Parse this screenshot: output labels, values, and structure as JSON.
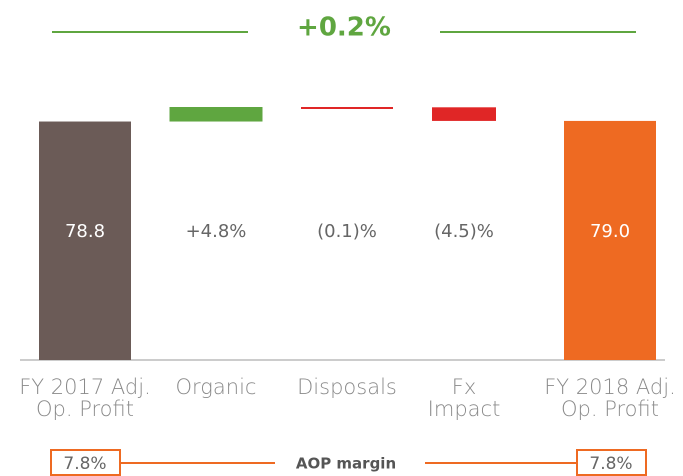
{
  "chart_data": {
    "type": "waterfall",
    "title": "+0.2%",
    "categories": [
      "FY 2017 Adj.\nOp. Profit",
      "Organic",
      "Disposals",
      "Fx\nImpact",
      "FY 2018 Adj.\nOp. Profit"
    ],
    "values": [
      78.8,
      4.8,
      -0.1,
      -4.5,
      79.0
    ],
    "value_labels": [
      "78.8",
      "+4.8%",
      "(0.1)%",
      "(4.5)%",
      "79.0"
    ],
    "kinds": [
      "total",
      "delta",
      "delta",
      "delta",
      "total"
    ],
    "colors": [
      "#6b5b57",
      "#5fa640",
      "#e02626",
      "#e02626",
      "#ee6a22"
    ],
    "footer": {
      "label": "AOP margin",
      "left": "7.8%",
      "right": "7.8%"
    }
  }
}
